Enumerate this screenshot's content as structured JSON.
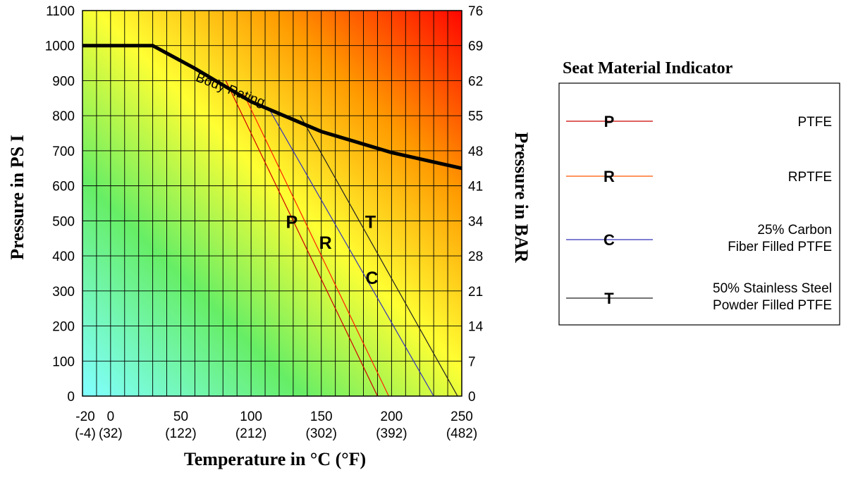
{
  "chart_data": {
    "type": "line",
    "title": "",
    "xlabel": "Temperature in °C (°F)",
    "ylabel": "Pressure in PS I",
    "y2label": "Pressure in BAR",
    "xlim": [
      -20,
      250
    ],
    "ylim": [
      0,
      1100
    ],
    "grid": true,
    "background": "gradient cyan-green-yellow-orange-red",
    "x_ticks": [
      {
        "value": -20,
        "label": "-20",
        "sub": "(-4)"
      },
      {
        "value": 0,
        "label": "0",
        "sub": "(32)"
      },
      {
        "value": 50,
        "label": "50",
        "sub": "(122)"
      },
      {
        "value": 100,
        "label": "100",
        "sub": "(212)"
      },
      {
        "value": 150,
        "label": "150",
        "sub": "(302)"
      },
      {
        "value": 200,
        "label": "200",
        "sub": "(392)"
      },
      {
        "value": 250,
        "label": "250",
        "sub": "(482)"
      }
    ],
    "y_ticks": [
      0,
      100,
      200,
      300,
      400,
      500,
      600,
      700,
      800,
      900,
      1000,
      1100
    ],
    "y2_ticks": [
      "0",
      "7",
      "14",
      "21",
      "28",
      "34",
      "41",
      "48",
      "55",
      "62",
      "69",
      "76"
    ],
    "body_rating": {
      "label": "Body Rating",
      "color": "#000000",
      "points": [
        [
          -20,
          1000
        ],
        [
          30,
          1000
        ],
        [
          60,
          935
        ],
        [
          100,
          840
        ],
        [
          150,
          755
        ],
        [
          200,
          695
        ],
        [
          250,
          650
        ]
      ]
    },
    "series": [
      {
        "letter": "P",
        "name": "PTFE",
        "color": "#cc0000",
        "points": [
          [
            82,
            900
          ],
          [
            190,
            0
          ]
        ],
        "label_at": [
          129,
          480
        ]
      },
      {
        "letter": "R",
        "name": "RPTFE",
        "color": "#ff2200",
        "points": [
          [
            95,
            860
          ],
          [
            198,
            0
          ]
        ],
        "label_at": [
          153,
          420
        ]
      },
      {
        "letter": "C",
        "name": "25% Carbon Fiber Filled PTFE",
        "color": "#3333bb",
        "points": [
          [
            112,
            825
          ],
          [
            230,
            0
          ]
        ],
        "label_at": [
          186,
          320
        ]
      },
      {
        "letter": "T",
        "name": "50% Stainless Steel Powder Filled PTFE",
        "color": "#222222",
        "points": [
          [
            135,
            800
          ],
          [
            247,
            0
          ]
        ],
        "label_at": [
          185,
          480
        ]
      }
    ],
    "legend": {
      "title": "Seat Material Indicator",
      "position": "right",
      "entries": [
        {
          "letter": "P",
          "lines": [
            "PTFE"
          ],
          "color": "#cc0000"
        },
        {
          "letter": "R",
          "lines": [
            "RPTFE"
          ],
          "color": "#ff5500"
        },
        {
          "letter": "C",
          "lines": [
            "25% Carbon",
            "Fiber Filled PTFE"
          ],
          "color": "#3333bb"
        },
        {
          "letter": "T",
          "lines": [
            "50% Stainless Steel",
            "Powder Filled PTFE"
          ],
          "color": "#222222"
        }
      ]
    }
  }
}
